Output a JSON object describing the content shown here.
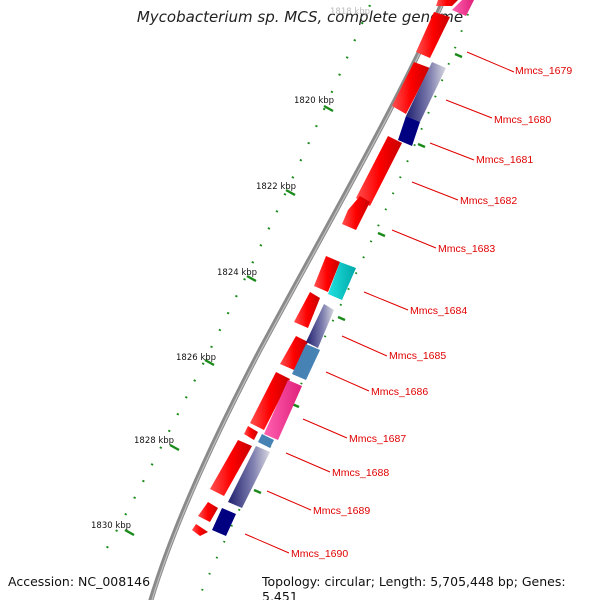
{
  "title": "Mycobacterium sp. MCS, complete genome",
  "footer": {
    "accession": "Accession: NC_008146",
    "topology": "Topology: circular; Length: 5,705,448 bp; Genes: 5,451"
  },
  "scale": {
    "top_label_faded": "1818 kbp",
    "labels": [
      "1820 kbp",
      "1822 kbp",
      "1824 kbp",
      "1826 kbp",
      "1828 kbp",
      "1830 kbp"
    ]
  },
  "gene_labels": [
    "Mmcs_1679",
    "Mmcs_1680",
    "Mmcs_1681",
    "Mmcs_1682",
    "Mmcs_1683",
    "Mmcs_1684",
    "Mmcs_1685",
    "Mmcs_1686",
    "Mmcs_1687",
    "Mmcs_1688",
    "Mmcs_1689",
    "Mmcs_1690"
  ],
  "colors": {
    "backbone": "#8a8a8a",
    "tick_green": "#1a8a1a",
    "gene_red": "#ff0000",
    "label_red": "#e00000",
    "magenta": "#ff2a8a",
    "dark_blue": "#000080",
    "steel_blue": "#4682b4",
    "cyan": "#00c8c8",
    "slate_gradient": "#6a6aa8"
  }
}
